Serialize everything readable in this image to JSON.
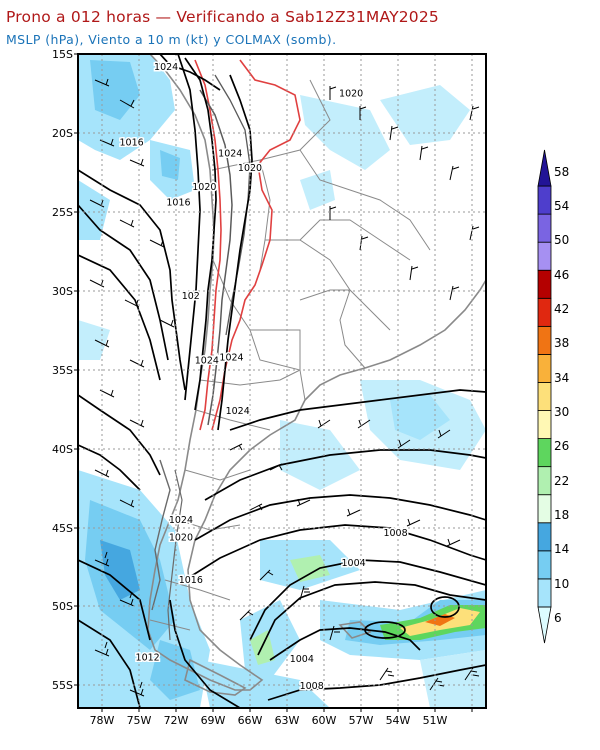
{
  "title_line1": "Prono a 012 horas — Verificando a Sab12Z31MAY2025",
  "title_line2": "MSLP (hPa), Viento a 10 m (kt) y COLMAX (somb).",
  "lat_labels": [
    "15S",
    "20S",
    "25S",
    "30S",
    "35S",
    "40S",
    "45S",
    "50S",
    "55S"
  ],
  "lon_labels": [
    "78W",
    "75W",
    "72W",
    "69W",
    "66W",
    "63W",
    "60W",
    "57W",
    "54W",
    "51W"
  ],
  "colorbar": {
    "labels": [
      "6",
      "10",
      "14",
      "18",
      "22",
      "26",
      "30",
      "34",
      "38",
      "42",
      "46",
      "50",
      "54",
      "58"
    ],
    "colors": [
      "#ddfcff",
      "#a6e4fb",
      "#76cdf2",
      "#45a7e0",
      "#e4fde4",
      "#b0f0b0",
      "#5ed65e",
      "#fff8b4",
      "#fde07a",
      "#f9b13a",
      "#f07414",
      "#e02810",
      "#b40000",
      "#a690f2",
      "#7a64e2",
      "#4e3ecc",
      "#221496"
    ]
  },
  "isobar_labels": [
    {
      "text": "1024",
      "lon": -72.8,
      "lat": -16.0
    },
    {
      "text": "1020",
      "lon": -57.8,
      "lat": -17.7
    },
    {
      "text": "1016",
      "lon": -75.6,
      "lat": -20.8
    },
    {
      "text": "1024",
      "lon": -67.6,
      "lat": -21.5
    },
    {
      "text": "1020",
      "lon": -66.0,
      "lat": -22.4
    },
    {
      "text": "1020",
      "lon": -69.7,
      "lat": -23.6
    },
    {
      "text": "1016",
      "lon": -71.8,
      "lat": -24.6
    },
    {
      "text": "102",
      "lon": -70.8,
      "lat": -30.5
    },
    {
      "text": "1024",
      "lon": -69.5,
      "lat": -34.6
    },
    {
      "text": "1024",
      "lon": -67.5,
      "lat": -34.4
    },
    {
      "text": "1024",
      "lon": -67.0,
      "lat": -37.8
    },
    {
      "text": "1024",
      "lon": -71.6,
      "lat": -44.7
    },
    {
      "text": "1020",
      "lon": -71.6,
      "lat": -45.8
    },
    {
      "text": "1008",
      "lon": -54.2,
      "lat": -45.5
    },
    {
      "text": "1004",
      "lon": -57.6,
      "lat": -47.4
    },
    {
      "text": "1016",
      "lon": -70.8,
      "lat": -48.5
    },
    {
      "text": "1012",
      "lon": -74.3,
      "lat": -53.4
    },
    {
      "text": "1004",
      "lon": -61.8,
      "lat": -53.5
    },
    {
      "text": "1008",
      "lon": -61.0,
      "lat": -55.2
    }
  ]
}
